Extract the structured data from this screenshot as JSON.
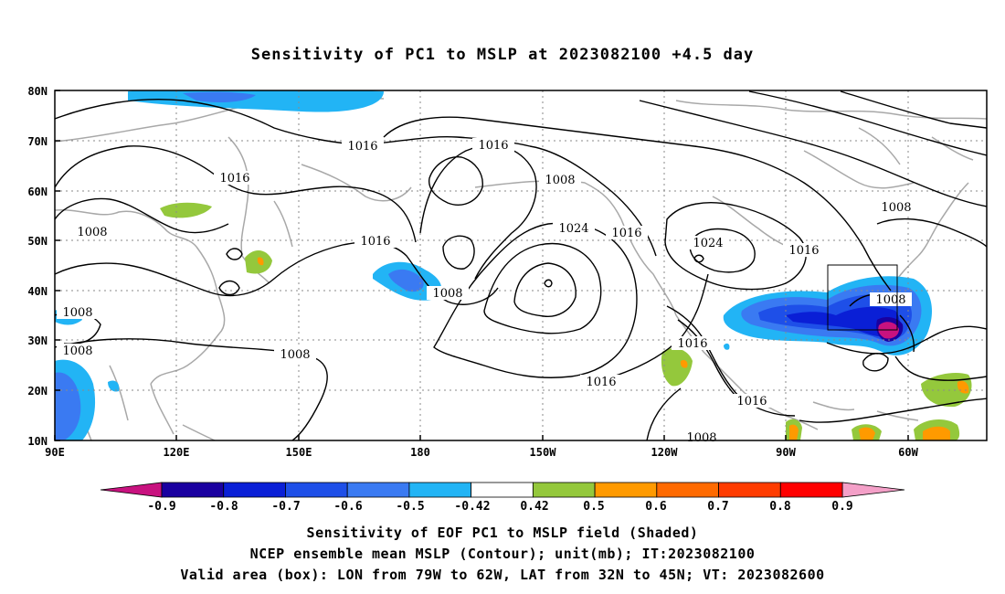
{
  "title": "Sensitivity of PC1 to MSLP at 2023082100 +4.5 day",
  "y_ticks": [
    "80N",
    "70N",
    "60N",
    "50N",
    "40N",
    "30N",
    "20N",
    "10N"
  ],
  "x_ticks": [
    "90E",
    "120E",
    "150E",
    "180",
    "150W",
    "120W",
    "90W",
    "60W"
  ],
  "contour_labels": [
    "1016",
    "1008",
    "1016",
    "1016",
    "1024",
    "1016",
    "1024",
    "1016",
    "1008",
    "1008",
    "1016",
    "1008",
    "1016",
    "1008",
    "1016",
    "1008",
    "1008",
    "1016",
    "1008",
    "1008",
    "1008"
  ],
  "colorbar": {
    "labels": [
      "-0.9",
      "-0.8",
      "-0.7",
      "-0.6",
      "-0.5",
      "-0.42",
      "0.42",
      "0.5",
      "0.6",
      "0.7",
      "0.8",
      "0.9"
    ],
    "colors": [
      "#1a00a0",
      "#0a1fd6",
      "#1e4fe8",
      "#3a7af2",
      "#22b4f5",
      "#ffffff",
      "#94c83c",
      "#ff9a00",
      "#ff6a00",
      "#ff3c00",
      "#ff0000"
    ],
    "left_tip_color": "#c8127f",
    "right_tip_color": "#f4a0c8"
  },
  "captions": [
    "Sensitivity of EOF PC1 to MSLP field (Shaded)",
    "NCEP ensemble mean MSLP (Contour); unit(mb); IT:2023082100",
    "Valid area (box): LON from 79W to 62W, LAT from 32N to 45N; VT: 2023082600"
  ]
}
